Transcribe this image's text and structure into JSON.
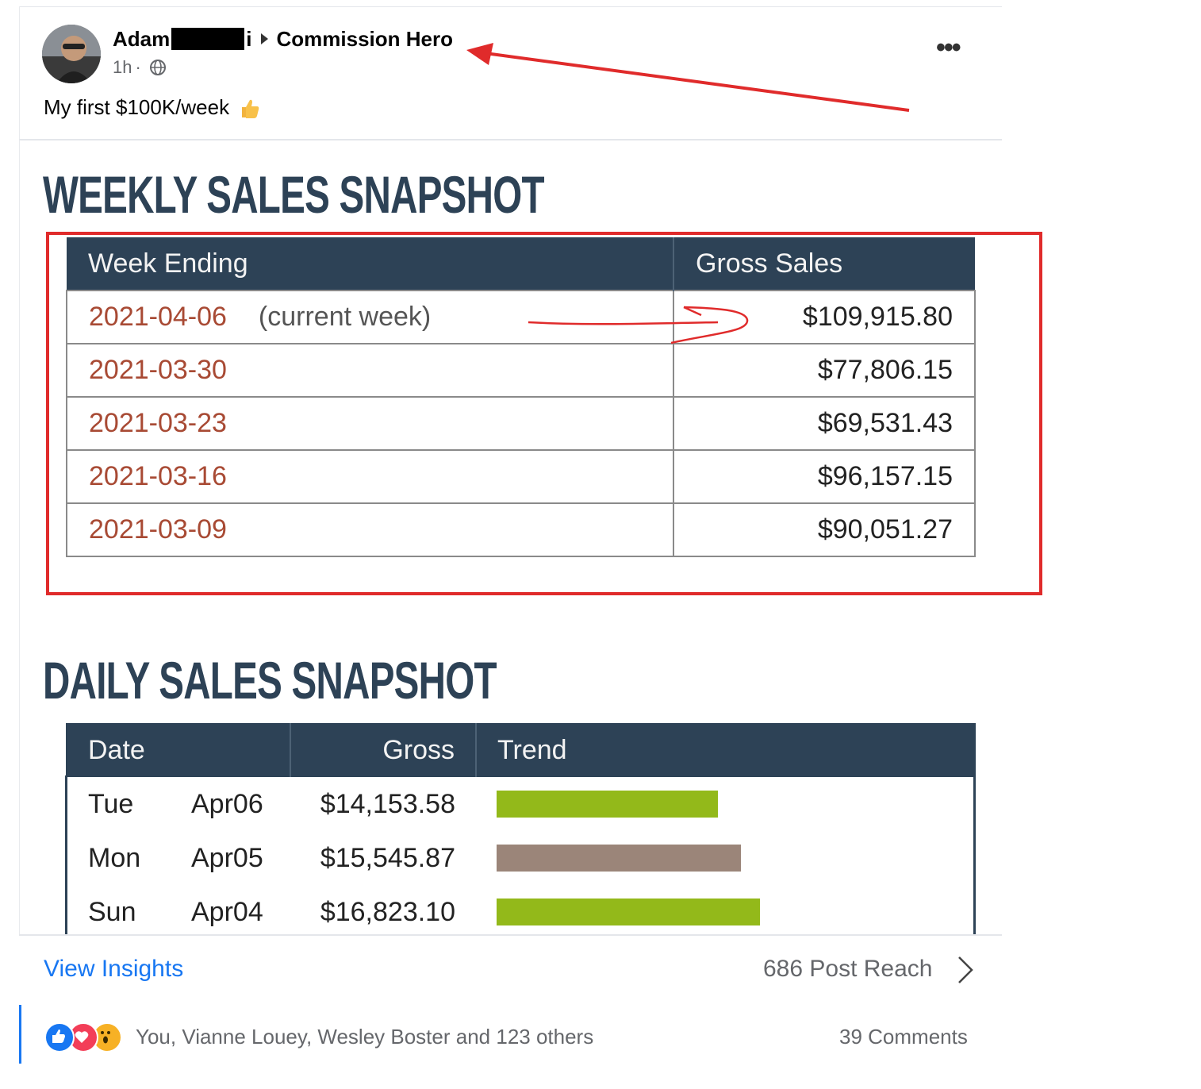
{
  "post": {
    "author_first": "Adam",
    "author_suffix": "i",
    "group": "Commission Hero",
    "time": "1h",
    "meta_sep": "·",
    "text": "My first $100K/week",
    "more": "•••"
  },
  "weekly": {
    "title": "WEEKLY SALES SNAPSHOT",
    "headers": [
      "Week Ending",
      "Gross Sales"
    ],
    "rows": [
      {
        "week": "2021-04-06",
        "note": "(current week)",
        "gross": "$109,915.80"
      },
      {
        "week": "2021-03-30",
        "note": "",
        "gross": "$77,806.15"
      },
      {
        "week": "2021-03-23",
        "note": "",
        "gross": "$69,531.43"
      },
      {
        "week": "2021-03-16",
        "note": "",
        "gross": "$96,157.15"
      },
      {
        "week": "2021-03-09",
        "note": "",
        "gross": "$90,051.27"
      }
    ]
  },
  "daily": {
    "title": "DAILY SALES SNAPSHOT",
    "headers": [
      "Date",
      "Gross",
      "Trend"
    ],
    "rows": [
      {
        "day": "Tue",
        "date": "Apr06",
        "gross": "$14,153.58",
        "trend_color": "#93b91a"
      },
      {
        "day": "Mon",
        "date": "Apr05",
        "gross": "$15,545.87",
        "trend_color": "#9b8579"
      },
      {
        "day": "Sun",
        "date": "Apr04",
        "gross": "$16,823.10",
        "trend_color": "#93b91a"
      }
    ]
  },
  "footer": {
    "insights": "View Insights",
    "reach": "686 Post Reach",
    "reactors": "You, Vianne Louey, Wesley Boster and 123 others",
    "comments": "39 Comments"
  },
  "colors": {
    "table_header": "#2d4256",
    "date_text": "#a84a34",
    "annotation_red": "#e02b2b",
    "link_blue": "#1877f2"
  },
  "icons": [
    "avatar",
    "caret-right-icon",
    "globe-icon",
    "thumbs-up-emoji-icon",
    "more-icon",
    "chevron-right-icon",
    "like-reaction-icon",
    "love-reaction-icon",
    "wow-reaction-icon"
  ]
}
